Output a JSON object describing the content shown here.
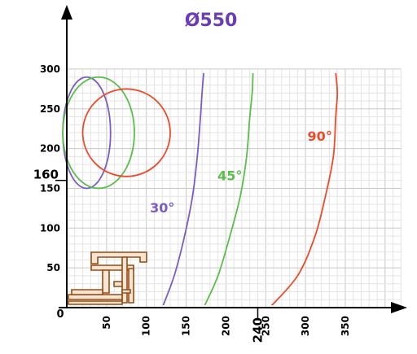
{
  "chart_data": {
    "type": "line",
    "title": "Ø550",
    "xlabel": "",
    "ylabel": "",
    "xlim": [
      0,
      420
    ],
    "ylim": [
      0,
      300
    ],
    "x_ticks": [
      50,
      100,
      150,
      200,
      250,
      300,
      350
    ],
    "y_ticks": [
      50,
      100,
      150,
      200,
      250,
      300
    ],
    "origin_label": "0",
    "grid": true,
    "marked_points": {
      "x": 240,
      "x_label": "240",
      "y": 160,
      "y_label": "160"
    },
    "curves": [
      {
        "label": "30°",
        "color": "#7b5cc4",
        "label_pos": [
          120,
          120
        ],
        "x": [
          120,
          135,
          148,
          158,
          164,
          168,
          170,
          172
        ],
        "y": [
          0,
          40,
          90,
          140,
          190,
          240,
          270,
          295
        ]
      },
      {
        "label": "45°",
        "color": "#5bbd4a",
        "label_pos": [
          205,
          160
        ],
        "x": [
          172,
          190,
          205,
          218,
          226,
          230,
          233,
          234
        ],
        "y": [
          0,
          40,
          90,
          140,
          190,
          240,
          270,
          295
        ]
      },
      {
        "label": "90°",
        "color": "#ee4a2a",
        "label_pos": [
          318,
          210
        ],
        "x": [
          255,
          290,
          312,
          325,
          335,
          338,
          340,
          338
        ],
        "y": [
          0,
          40,
          90,
          140,
          190,
          240,
          270,
          295
        ]
      }
    ],
    "ellipses": [
      {
        "color": "#7b5cc4",
        "cx": 25,
        "cy": 220,
        "rx": 30,
        "ry": 70
      },
      {
        "color": "#5bbd4a",
        "cx": 40,
        "cy": 220,
        "rx": 45,
        "ry": 70
      },
      {
        "color": "#ee4a2a",
        "cx": 75,
        "cy": 220,
        "rx": 55,
        "ry": 55
      }
    ],
    "profile_color": "#9a4a10"
  }
}
